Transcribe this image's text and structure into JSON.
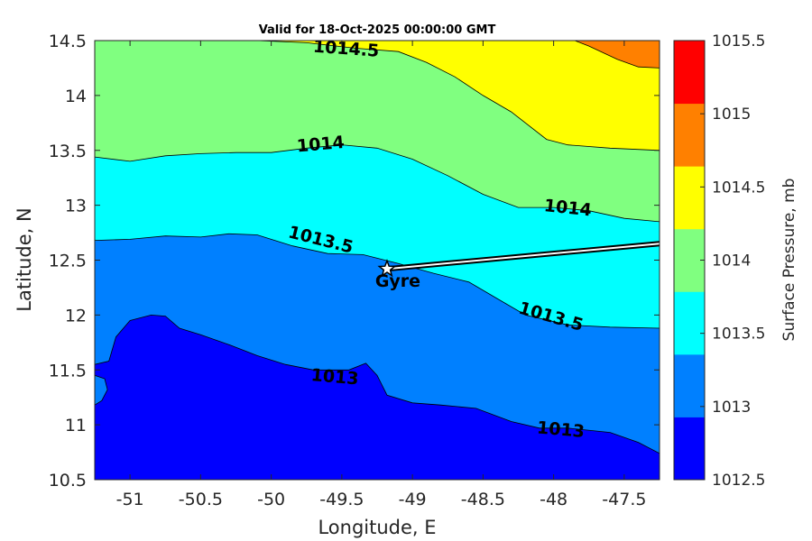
{
  "chart_data": {
    "type": "contour",
    "title": "Valid for 18-Oct-2025 00:00:00 GMT",
    "xlabel": "Longitude, E",
    "ylabel": "Latitude, N",
    "xlim": [
      -51.25,
      -47.25
    ],
    "ylim": [
      10.5,
      14.5
    ],
    "xticks": [
      -51,
      -50.5,
      -50,
      -49.5,
      -49,
      -48.5,
      -48,
      -47.5
    ],
    "yticks": [
      10.5,
      11,
      11.5,
      12,
      12.5,
      13,
      13.5,
      14,
      14.5
    ],
    "colorbar": {
      "label": "Surface Pressure, mb",
      "levels": [
        1012.5,
        1013,
        1013.5,
        1014,
        1014.5,
        1015,
        1015.5
      ],
      "colors": [
        "#0000ff",
        "#0080ff",
        "#00ffff",
        "#80ff80",
        "#ffff00",
        "#ff8000",
        "#ff0000"
      ]
    },
    "contour_labels": [
      {
        "text": "1014.5",
        "x": -49.47,
        "y": 14.42,
        "angle": 4
      },
      {
        "text": "1014",
        "x": -49.65,
        "y": 13.55,
        "angle": -5
      },
      {
        "text": "1014",
        "x": -47.9,
        "y": 12.97,
        "angle": 6
      },
      {
        "text": "1013.5",
        "x": -49.65,
        "y": 12.68,
        "angle": 14
      },
      {
        "text": "1013.5",
        "x": -48.02,
        "y": 11.98,
        "angle": 16
      },
      {
        "text": "1013",
        "x": -49.55,
        "y": 11.43,
        "angle": 5
      },
      {
        "text": "1013",
        "x": -47.95,
        "y": 10.95,
        "angle": 5
      }
    ],
    "contours": [
      {
        "level": 1013,
        "points": [
          [
            -51.25,
            11.55
          ],
          [
            -51.15,
            11.58
          ],
          [
            -51.1,
            11.8
          ],
          [
            -51.0,
            11.95
          ],
          [
            -50.85,
            12.0
          ],
          [
            -50.75,
            11.99
          ],
          [
            -50.65,
            11.88
          ],
          [
            -50.5,
            11.82
          ],
          [
            -50.3,
            11.73
          ],
          [
            -50.1,
            11.63
          ],
          [
            -49.9,
            11.55
          ],
          [
            -49.7,
            11.5
          ],
          [
            -49.45,
            11.5
          ],
          [
            -49.33,
            11.56
          ],
          [
            -49.25,
            11.45
          ],
          [
            -49.18,
            11.27
          ],
          [
            -49.0,
            11.2
          ],
          [
            -48.8,
            11.18
          ],
          [
            -48.55,
            11.15
          ],
          [
            -48.3,
            11.03
          ],
          [
            -48.1,
            10.97
          ],
          [
            -47.9,
            10.97
          ],
          [
            -47.6,
            10.93
          ],
          [
            -47.4,
            10.84
          ],
          [
            -47.25,
            10.74
          ]
        ]
      },
      {
        "level": 1013.5,
        "points": [
          [
            -51.25,
            12.68
          ],
          [
            -51.0,
            12.69
          ],
          [
            -50.75,
            12.72
          ],
          [
            -50.5,
            12.71
          ],
          [
            -50.3,
            12.74
          ],
          [
            -50.1,
            12.73
          ],
          [
            -49.85,
            12.63
          ],
          [
            -49.6,
            12.56
          ],
          [
            -49.35,
            12.55
          ],
          [
            -49.1,
            12.47
          ],
          [
            -48.85,
            12.38
          ],
          [
            -48.6,
            12.3
          ],
          [
            -48.4,
            12.15
          ],
          [
            -48.2,
            12.0
          ],
          [
            -47.9,
            11.91
          ],
          [
            -47.6,
            11.89
          ],
          [
            -47.25,
            11.88
          ]
        ]
      },
      {
        "level": 1014,
        "points": [
          [
            -51.25,
            13.44
          ],
          [
            -51.0,
            13.4
          ],
          [
            -50.75,
            13.45
          ],
          [
            -50.5,
            13.47
          ],
          [
            -50.25,
            13.48
          ],
          [
            -50.0,
            13.48
          ],
          [
            -49.75,
            13.52
          ],
          [
            -49.5,
            13.55
          ],
          [
            -49.25,
            13.52
          ],
          [
            -49.0,
            13.42
          ],
          [
            -48.75,
            13.27
          ],
          [
            -48.5,
            13.1
          ],
          [
            -48.25,
            12.98
          ],
          [
            -48.0,
            12.98
          ],
          [
            -47.75,
            12.95
          ],
          [
            -47.5,
            12.88
          ],
          [
            -47.25,
            12.85
          ]
        ]
      },
      {
        "level": 1014.5,
        "points": [
          [
            -50.1,
            14.5
          ],
          [
            -49.75,
            14.48
          ],
          [
            -49.4,
            14.43
          ],
          [
            -49.1,
            14.4
          ],
          [
            -48.9,
            14.3
          ],
          [
            -48.7,
            14.17
          ],
          [
            -48.5,
            14.0
          ],
          [
            -48.3,
            13.85
          ],
          [
            -48.05,
            13.6
          ],
          [
            -47.9,
            13.55
          ],
          [
            -47.6,
            13.52
          ],
          [
            -47.25,
            13.5
          ]
        ]
      },
      {
        "level": 1015,
        "points": [
          [
            -47.85,
            14.5
          ],
          [
            -47.75,
            14.45
          ],
          [
            -47.55,
            14.33
          ],
          [
            -47.4,
            14.26
          ],
          [
            -47.25,
            14.25
          ]
        ]
      }
    ],
    "lobe": [
      [
        -51.25,
        11.45
      ],
      [
        -51.18,
        11.42
      ],
      [
        -51.16,
        11.32
      ],
      [
        -51.2,
        11.22
      ],
      [
        -51.25,
        11.18
      ]
    ],
    "track": {
      "label": "Gyre",
      "points": [
        [
          -49.18,
          12.42
        ],
        [
          -47.25,
          12.65
        ]
      ]
    }
  }
}
